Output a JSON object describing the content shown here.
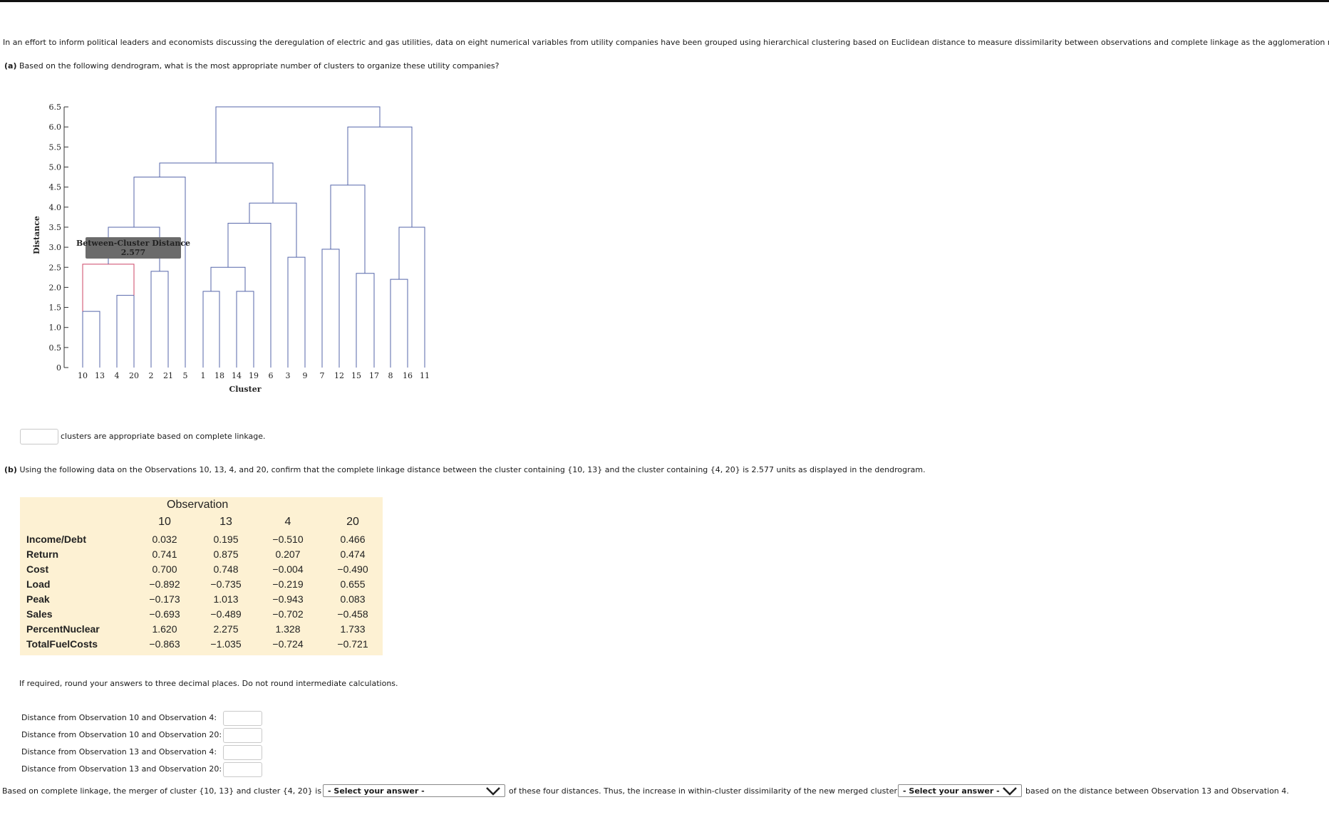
{
  "intro": "In an effort to inform political leaders and economists discussing the deregulation of electric and gas utilities, data on eight numerical variables from utility companies have been grouped using hierarchical clustering based on Euclidean distance to measure dissimilarity between observations and complete linkage as the agglomeration method.",
  "part_a": {
    "label": "(a)",
    "question": "Based on the following dendrogram, what is the most appropriate number of clusters to organize these utility companies?",
    "answer_suffix": "clusters are appropriate based on complete linkage."
  },
  "dendrogram": {
    "y_axis_label": "Distance",
    "x_axis_label": "Cluster",
    "y_ticks": [
      "6.5",
      "6.0",
      "5.5",
      "5.0",
      "4.5",
      "4.0",
      "3.5",
      "3.0",
      "2.5",
      "2.0",
      "1.5",
      "1.0",
      "0.5",
      "0"
    ],
    "leaves": [
      "10",
      "13",
      "4",
      "20",
      "2",
      "21",
      "5",
      "1",
      "18",
      "14",
      "19",
      "6",
      "3",
      "9",
      "7",
      "12",
      "15",
      "17",
      "8",
      "16",
      "11"
    ],
    "tooltip_title": "Between-Cluster Distance",
    "tooltip_value": "2.577",
    "colors": {
      "link": "#5566aa",
      "highlight": "#cc4466",
      "tooltip_bg": "#6b6b6b"
    }
  },
  "part_b": {
    "label": "(b)",
    "question": "Using the following data on the Observations 10, 13, 4, and 20, confirm that the complete linkage distance between the cluster containing {10, 13} and the cluster containing {4, 20} is 2.577 units as displayed in the dendrogram."
  },
  "table": {
    "header": "Observation",
    "columns": [
      "10",
      "13",
      "4",
      "20"
    ],
    "rows": [
      {
        "label": "Income/Debt",
        "values": [
          "0.032",
          "0.195",
          "−0.510",
          "0.466"
        ]
      },
      {
        "label": "Return",
        "values": [
          "0.741",
          "0.875",
          "0.207",
          "0.474"
        ]
      },
      {
        "label": "Cost",
        "values": [
          "0.700",
          "0.748",
          "−0.004",
          "−0.490"
        ]
      },
      {
        "label": "Load",
        "values": [
          "−0.892",
          "−0.735",
          "−0.219",
          "0.655"
        ]
      },
      {
        "label": "Peak",
        "values": [
          "−0.173",
          "1.013",
          "−0.943",
          "0.083"
        ]
      },
      {
        "label": "Sales",
        "values": [
          "−0.693",
          "−0.489",
          "−0.702",
          "−0.458"
        ]
      },
      {
        "label": "PercentNuclear",
        "values": [
          "1.620",
          "2.275",
          "1.328",
          "1.733"
        ]
      },
      {
        "label": "TotalFuelCosts",
        "values": [
          "−0.863",
          "−1.035",
          "−0.724",
          "−0.721"
        ]
      }
    ]
  },
  "rounding_note": "If required, round your answers to three decimal places. Do not round intermediate calculations.",
  "distances": [
    {
      "label": "Distance from Observation 10 and Observation 4:"
    },
    {
      "label": "Distance from Observation 10 and Observation 20:"
    },
    {
      "label": "Distance from Observation 13 and Observation 4:"
    },
    {
      "label": "Distance from Observation 13 and Observation 20:"
    }
  ],
  "final_sentence": {
    "part1": "Based on complete linkage, the merger of cluster {10, 13} and cluster {4, 20} is",
    "select1": "- Select your answer -",
    "part2": "of these four distances. Thus, the increase in within-cluster dissimilarity of the new merged cluster",
    "select2": "- Select your answer -",
    "part3": "based on the distance between Observation 13 and Observation 4."
  }
}
